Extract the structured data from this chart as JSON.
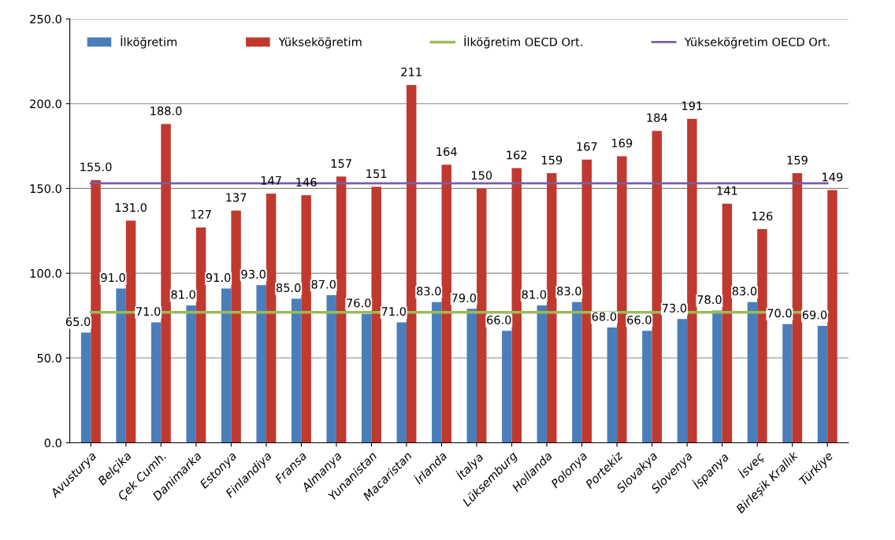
{
  "chart_data": {
    "type": "bar",
    "categories": [
      "Avusturya",
      "Belçika",
      "Çek Cumh.",
      "Danimarka",
      "Estonya",
      "Finlandiya",
      "Fransa",
      "Almanya",
      "Yunanistan",
      "Macaristan",
      "İrlanda",
      "İtalya",
      "Lüksemburg",
      "Hollanda",
      "Polonya",
      "Portekiz",
      "Slovakya",
      "Slovenya",
      "İspanya",
      "İsveç",
      "Birleşik Krallık",
      "Türkiye"
    ],
    "series": [
      {
        "name": "İlköğretim",
        "color": "#4a7ebb",
        "values": [
          65,
          91,
          71,
          81,
          91,
          93,
          85,
          87,
          76,
          71,
          83,
          79,
          66,
          81,
          83,
          68,
          66,
          73,
          78,
          83,
          70,
          69
        ],
        "value_labels": [
          "65.0",
          "91.0",
          "71.0",
          "81.0",
          "91.0",
          "93.0",
          "85.0",
          "87.0",
          "76.0",
          "71.0",
          "83.0",
          "79.0",
          "66.0",
          "81.0",
          "83.0",
          "68.0",
          "66.0",
          "73.0",
          "78.0",
          "83.0",
          "70.0",
          "69.0"
        ]
      },
      {
        "name": "Yükseköğretim",
        "color": "#c0392f",
        "values": [
          155,
          131,
          188,
          127,
          137,
          147,
          146,
          157,
          151,
          211,
          164,
          150,
          162,
          159,
          167,
          169,
          184,
          191,
          141,
          126,
          159,
          149
        ],
        "value_labels": [
          "155.0",
          "131.0",
          "188.0",
          "127",
          "137",
          "147",
          "146",
          "157",
          "151",
          "211",
          "164",
          "150",
          "162",
          "159",
          "167",
          "169",
          "184",
          "191",
          "141",
          "126",
          "159",
          "149"
        ]
      },
      {
        "name": "İlköğretim OECD Ort.",
        "type": "line",
        "color": "#9bbb59",
        "values": [
          77,
          77,
          77,
          77,
          77,
          77,
          77,
          77,
          77,
          77,
          77,
          77,
          77,
          77,
          77,
          77,
          77,
          77,
          77,
          77,
          77,
          77
        ]
      },
      {
        "name": "Yükseköğretim OECD Ort.",
        "type": "line",
        "color": "#7a5ea8",
        "values": [
          153,
          153,
          153,
          153,
          153,
          153,
          153,
          153,
          153,
          153,
          153,
          153,
          153,
          153,
          153,
          153,
          153,
          153,
          153,
          153,
          153,
          153
        ]
      }
    ],
    "ylim": [
      0,
      250
    ],
    "yticks": [
      {
        "value": 0,
        "label": "0.0"
      },
      {
        "value": 50,
        "label": "50.0"
      },
      {
        "value": 100,
        "label": "100.0"
      },
      {
        "value": 150,
        "label": "150.0"
      },
      {
        "value": 200,
        "label": "200.0"
      },
      {
        "value": 250,
        "label": "250.0"
      }
    ],
    "grid": "y",
    "legend": "top"
  }
}
